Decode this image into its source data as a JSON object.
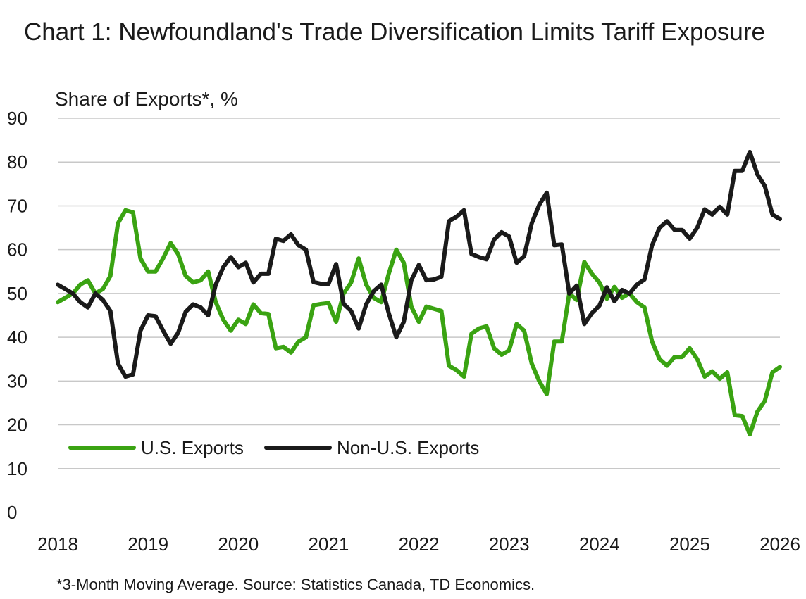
{
  "chart_data": {
    "type": "line",
    "title": "Chart 1: Newfoundland's Trade Diversification Limits Tariff Exposure",
    "ylabel": "Share of Exports*, %",
    "footnote": "*3-Month Moving Average. Source: Statistics Canada, TD Economics.",
    "ylim": [
      0,
      90
    ],
    "yticks": [
      "0",
      "10",
      "20",
      "30",
      "40",
      "50",
      "60",
      "70",
      "80",
      "90"
    ],
    "xlim": [
      2018,
      2026
    ],
    "xticks": [
      "2018",
      "2019",
      "2020",
      "2021",
      "2022",
      "2023",
      "2024",
      "2025",
      "2026"
    ],
    "grid": "horizontal",
    "legend_position": "bottom-left",
    "series": [
      {
        "name": "U.S. Exports",
        "color": "#3aa312",
        "values": [
          48,
          49,
          50,
          52,
          53,
          50,
          51,
          54,
          66,
          69,
          68.5,
          58,
          55,
          55,
          58,
          61.5,
          59,
          54,
          52.5,
          53,
          55,
          48,
          44,
          41.5,
          44,
          43,
          47.5,
          45.5,
          45.3,
          37.5,
          37.8,
          36.5,
          39,
          40,
          47.3,
          47.6,
          47.8,
          43.5,
          50,
          52.5,
          58,
          52,
          49,
          48,
          54.5,
          60,
          57,
          47,
          43.5,
          47,
          46.5,
          46,
          33.5,
          32.5,
          31,
          40.8,
          42,
          42.5,
          37.5,
          36,
          37,
          43,
          41.5,
          34,
          30,
          27,
          39,
          39,
          50,
          48.5,
          57.2,
          54.5,
          52.5,
          48.8,
          51.5,
          49,
          50,
          48,
          46.8,
          39,
          35,
          33.5,
          35.5,
          35.5,
          37.5,
          35,
          31,
          32.2,
          30.5,
          32,
          22.2,
          22,
          17.8,
          23,
          25.5,
          32,
          33.2
        ]
      },
      {
        "name": "Non-U.S. Exports",
        "color": "#1a1a1a",
        "values": [
          52,
          51,
          50,
          48,
          46.8,
          50,
          48.5,
          46,
          34,
          31,
          31.5,
          41.5,
          45,
          44.8,
          41.5,
          38.5,
          41,
          45.8,
          47.5,
          46.8,
          45,
          52,
          56,
          58.3,
          56,
          57,
          52.5,
          54.5,
          54.5,
          62.5,
          62,
          63.5,
          61,
          60,
          52.6,
          52.2,
          52.2,
          56.7,
          47.6,
          46,
          42,
          47.5,
          50.5,
          52,
          45.5,
          40,
          43.5,
          53,
          56.5,
          53,
          53.2,
          53.8,
          66.5,
          67.5,
          69,
          59,
          58.3,
          57.8,
          62.3,
          64,
          63,
          57,
          58.5,
          66,
          70.2,
          73,
          61,
          61.2,
          50,
          51.8,
          43,
          45.5,
          47.2,
          51.4,
          48.2,
          50.8,
          50,
          52,
          53.2,
          61,
          65,
          66.5,
          64.5,
          64.5,
          62.5,
          65,
          69.2,
          68,
          69.8,
          68,
          78,
          78,
          82.3,
          77.2,
          74.5,
          68,
          67
        ]
      }
    ]
  }
}
